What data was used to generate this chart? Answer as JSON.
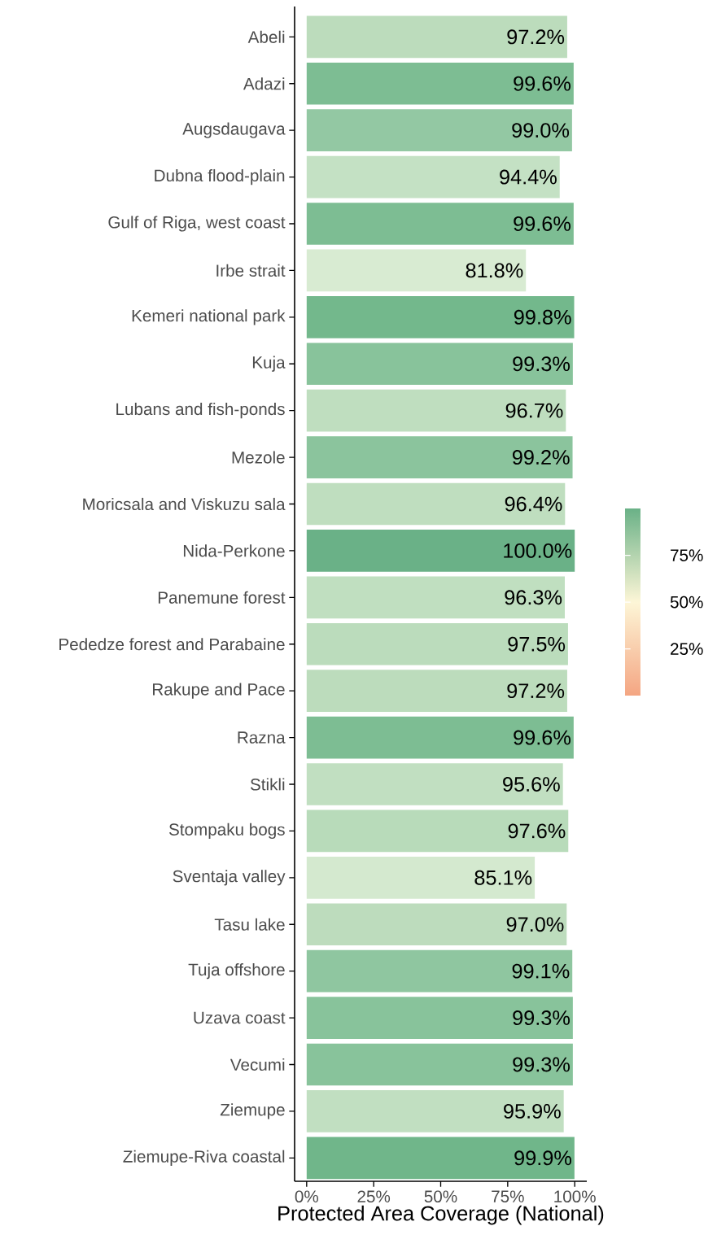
{
  "chart_data": {
    "type": "bar",
    "orientation": "horizontal",
    "xlabel": "Protected Area Coverage (National)",
    "categories": [
      "Abeli",
      "Adazi",
      "Augsdaugava",
      "Dubna flood-plain",
      "Gulf of Riga, west coast",
      "Irbe strait",
      "Kemeri national park",
      "Kuja",
      "Lubans and fish-ponds",
      "Mezole",
      "Moricsala and Viskuzu sala",
      "Nida-Perkone",
      "Panemune forest",
      "Pededze forest and Parabaine",
      "Rakupe and Pace",
      "Razna",
      "Stikli",
      "Stompaku bogs",
      "Sventaja valley",
      "Tasu lake",
      "Tuja offshore",
      "Uzava coast",
      "Vecumi",
      "Ziemupe",
      "Ziemupe-Riva coastal"
    ],
    "values": [
      97.2,
      99.6,
      99.0,
      94.4,
      99.6,
      81.8,
      99.8,
      99.3,
      96.7,
      99.2,
      96.4,
      100.0,
      96.3,
      97.5,
      97.2,
      99.6,
      95.6,
      97.6,
      85.1,
      97.0,
      99.1,
      99.3,
      99.3,
      95.9,
      99.9
    ],
    "value_labels": [
      "97.2%",
      "99.6%",
      "99.0%",
      "94.4%",
      "99.6%",
      "81.8%",
      "99.8%",
      "99.3%",
      "96.7%",
      "99.2%",
      "96.4%",
      "100.0%",
      "96.3%",
      "97.5%",
      "97.2%",
      "99.6%",
      "95.6%",
      "97.6%",
      "85.1%",
      "97.0%",
      "99.1%",
      "99.3%",
      "99.3%",
      "95.9%",
      "99.9%"
    ],
    "colors": [
      "#bcdcbc",
      "#7dbd93",
      "#93c8a3",
      "#c4e1c4",
      "#7dbd93",
      "#d8ebd2",
      "#73b88c",
      "#88c39b",
      "#bfdebf",
      "#8bc49d",
      "#bfdebf",
      "#6ab187",
      "#c0dfc0",
      "#bbdcbc",
      "#bcdcbc",
      "#7dbd93",
      "#c1dfc1",
      "#b8dbba",
      "#d4e9cf",
      "#bddcbd",
      "#8fc6a0",
      "#88c39b",
      "#88c39b",
      "#c1dfc1",
      "#70b68a"
    ],
    "xlim": [
      -4.5,
      104.5
    ],
    "xticks": [
      {
        "value": 0,
        "label": "0%"
      },
      {
        "value": 25,
        "label": "25%"
      },
      {
        "value": 50,
        "label": "50%"
      },
      {
        "value": 75,
        "label": "75%"
      },
      {
        "value": 100,
        "label": "100%"
      }
    ],
    "clim": [
      0,
      100
    ],
    "cticks": [
      {
        "value": 25,
        "label": "25%"
      },
      {
        "value": 50,
        "label": "50%"
      },
      {
        "value": 75,
        "label": "75%"
      }
    ]
  }
}
